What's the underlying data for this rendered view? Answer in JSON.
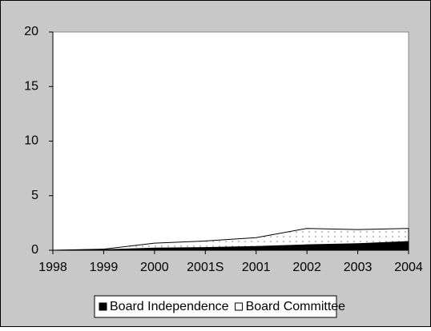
{
  "chart_data": {
    "type": "stacked_area",
    "categories": [
      "1998",
      "1999",
      "2000",
      "2001S",
      "2001",
      "2002",
      "2003",
      "2004"
    ],
    "series": [
      {
        "name": "Board Independence",
        "color": "#000000",
        "values": [
          0,
          0.05,
          0.2,
          0.25,
          0.35,
          0.5,
          0.6,
          0.8
        ]
      },
      {
        "name": "Board Committee",
        "color": "#ffffff",
        "values": [
          0,
          0.05,
          0.45,
          0.6,
          0.8,
          1.5,
          1.3,
          1.2
        ]
      }
    ],
    "ylim": [
      0,
      20
    ],
    "yticks": [
      0,
      5,
      10,
      15,
      20
    ],
    "grid": false
  }
}
